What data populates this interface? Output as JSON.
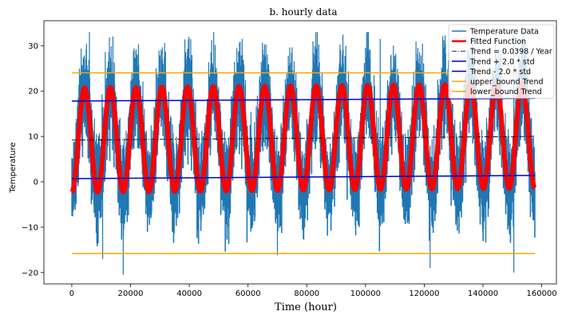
{
  "chart_data": {
    "type": "line",
    "title": "b. hourly data",
    "xlabel": "Time (hour)",
    "ylabel": "Temperature",
    "xlim": [
      -9500,
      165000
    ],
    "ylim": [
      -22.5,
      35.5
    ],
    "x_ticks": [
      0,
      20000,
      40000,
      60000,
      80000,
      100000,
      120000,
      140000,
      160000
    ],
    "x_tick_labels": [
      "0",
      "20000",
      "40000",
      "60000",
      "80000",
      "100000",
      "120000",
      "140000",
      "160000"
    ],
    "y_ticks": [
      -20,
      -10,
      0,
      10,
      20,
      30
    ],
    "y_tick_labels": [
      "−20",
      "−10",
      "0",
      "10",
      "20",
      "30"
    ],
    "grid": false,
    "legend_position": "top-right",
    "colors": {
      "temperature": "#1f77b4",
      "fitted": "#ff0000",
      "trend": "#000000",
      "trend_std": "#0000cc",
      "bounds": "#ffa500"
    },
    "series": [
      {
        "name": "Temperature Data",
        "style": "solid",
        "period_hours": 8760,
        "mean_start": 9.2,
        "mean_end": 10.1,
        "seasonal_amplitude": 11,
        "typical_max": 32,
        "typical_min": -12,
        "x_start": 0,
        "x_end": 157700
      },
      {
        "name": "Fitted Function",
        "style": "solid-thick",
        "period_hours": 8760,
        "mean_start": 9.2,
        "mean_end": 10.1,
        "amplitude": 11.5,
        "x_start": 0,
        "x_end": 157700
      },
      {
        "name": "Trend = 0.0398 / Year",
        "style": "dashdot",
        "x": [
          0,
          157700
        ],
        "y": [
          9.2,
          10.0
        ]
      },
      {
        "name": "Trend + 2.0 * std",
        "style": "solid",
        "x": [
          0,
          157700
        ],
        "y": [
          17.8,
          18.4
        ]
      },
      {
        "name": "Trend - 2.0 * std",
        "style": "solid",
        "x": [
          0,
          157700
        ],
        "y": [
          0.7,
          1.4
        ]
      },
      {
        "name": "upper_bound Trend",
        "style": "solid",
        "x": [
          0,
          157700
        ],
        "y": [
          24.0,
          24.0
        ]
      },
      {
        "name": "lower_bound Trend",
        "style": "solid",
        "x": [
          0,
          157700
        ],
        "y": [
          -15.8,
          -15.8
        ]
      }
    ],
    "notable_points": {
      "max_temperature": 33,
      "min_temperature": -20.5,
      "min_temperature_x": 17500
    }
  }
}
